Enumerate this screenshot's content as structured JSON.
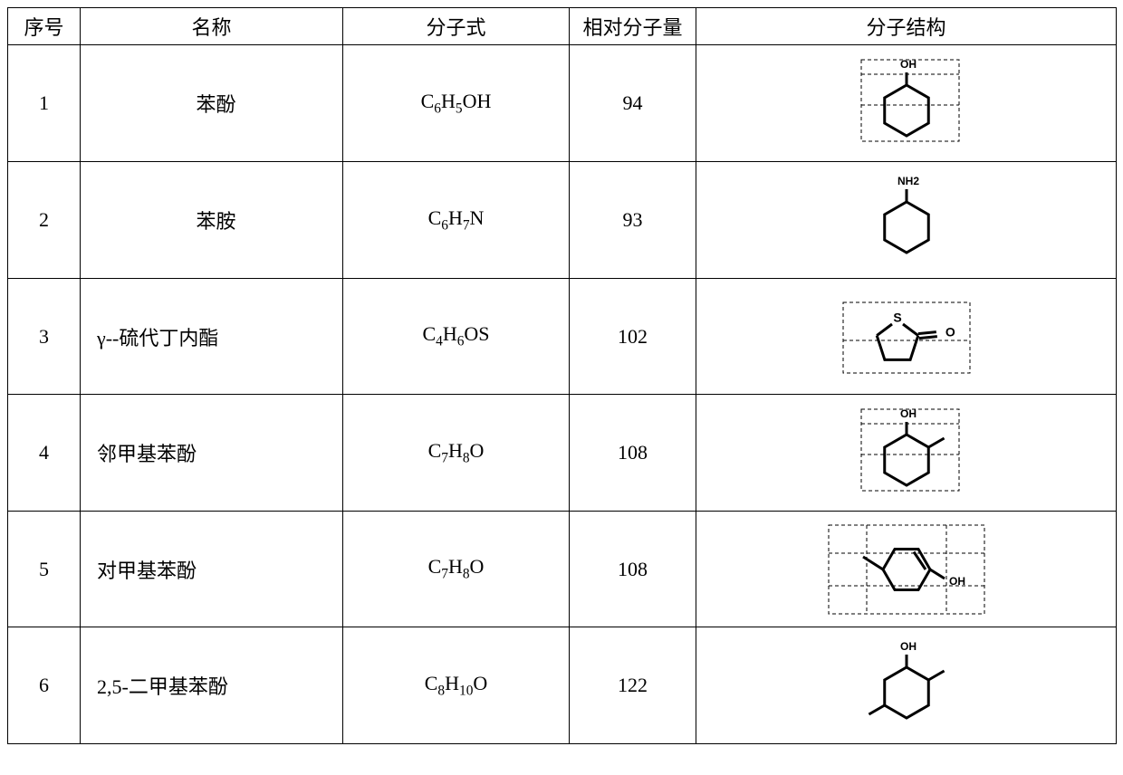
{
  "headers": {
    "idx": "序号",
    "name": "名称",
    "formula": "分子式",
    "mw": "相对分子量",
    "structure": "分子结构"
  },
  "rows": [
    {
      "idx": "1",
      "name": "苯酚",
      "name_align": "center",
      "formula_html": "C<sub>6</sub>H<sub>5</sub>OH",
      "mw": "94",
      "structure": {
        "type": "hex_ring",
        "scale": 1.0,
        "stroke": "#000000",
        "stroke_width": 3,
        "guides": true,
        "guide_color": "#000000",
        "labels": [
          {
            "pos": "top",
            "text": "OH",
            "fontsize": 12,
            "fontweight": "bold"
          }
        ],
        "substituents": []
      }
    },
    {
      "idx": "2",
      "name": "苯胺",
      "name_align": "center",
      "formula_html": "C<sub>6</sub>H<sub>7</sub>N",
      "mw": "93",
      "structure": {
        "type": "hex_ring",
        "scale": 1.0,
        "stroke": "#000000",
        "stroke_width": 3,
        "guides": false,
        "labels": [
          {
            "pos": "top",
            "text": "NH2",
            "fontsize": 12,
            "fontweight": "bold"
          }
        ],
        "substituents": []
      }
    },
    {
      "idx": "3",
      "name": "γ--硫代丁内酯",
      "name_align": "left",
      "formula_html": "C<sub>4</sub>H<sub>6</sub>OS",
      "mw": "102",
      "structure": {
        "type": "thiolactone",
        "scale": 1.0,
        "stroke": "#000000",
        "stroke_width": 3,
        "guides": true,
        "guide_color": "#000000",
        "s_label": "S",
        "o_label": "O",
        "label_fontsize": 14
      }
    },
    {
      "idx": "4",
      "name": "邻甲基苯酚",
      "name_align": "left",
      "formula_html": "C<sub>7</sub>H<sub>8</sub>O",
      "mw": "108",
      "structure": {
        "type": "hex_ring",
        "scale": 1.0,
        "stroke": "#000000",
        "stroke_width": 3,
        "guides": true,
        "guide_color": "#000000",
        "labels": [
          {
            "pos": "top",
            "text": "OH",
            "fontsize": 12,
            "fontweight": "bold"
          }
        ],
        "substituents": [
          {
            "vertex": 1,
            "len": 20
          }
        ]
      }
    },
    {
      "idx": "5",
      "name": "对甲基苯酚",
      "name_align": "left",
      "formula_html": "C<sub>7</sub>H<sub>8</sub>O",
      "mw": "108",
      "structure": {
        "type": "hex_ring_para",
        "scale": 1.0,
        "stroke": "#000000",
        "stroke_width": 3,
        "guides": true,
        "guide_color": "#000000",
        "oh_label": "OH",
        "label_fontsize": 12
      }
    },
    {
      "idx": "6",
      "name": "2,5-二甲基苯酚",
      "name_align": "left",
      "formula_html": "C<sub>8</sub>H<sub>10</sub>O",
      "mw": "122",
      "structure": {
        "type": "hex_ring",
        "scale": 1.0,
        "stroke": "#000000",
        "stroke_width": 3,
        "guides": false,
        "labels": [
          {
            "pos": "top",
            "text": "OH",
            "fontsize": 12,
            "fontweight": "bold"
          }
        ],
        "substituents": [
          {
            "vertex": 1,
            "len": 20
          },
          {
            "vertex": 4,
            "len": 20
          }
        ]
      }
    }
  ]
}
